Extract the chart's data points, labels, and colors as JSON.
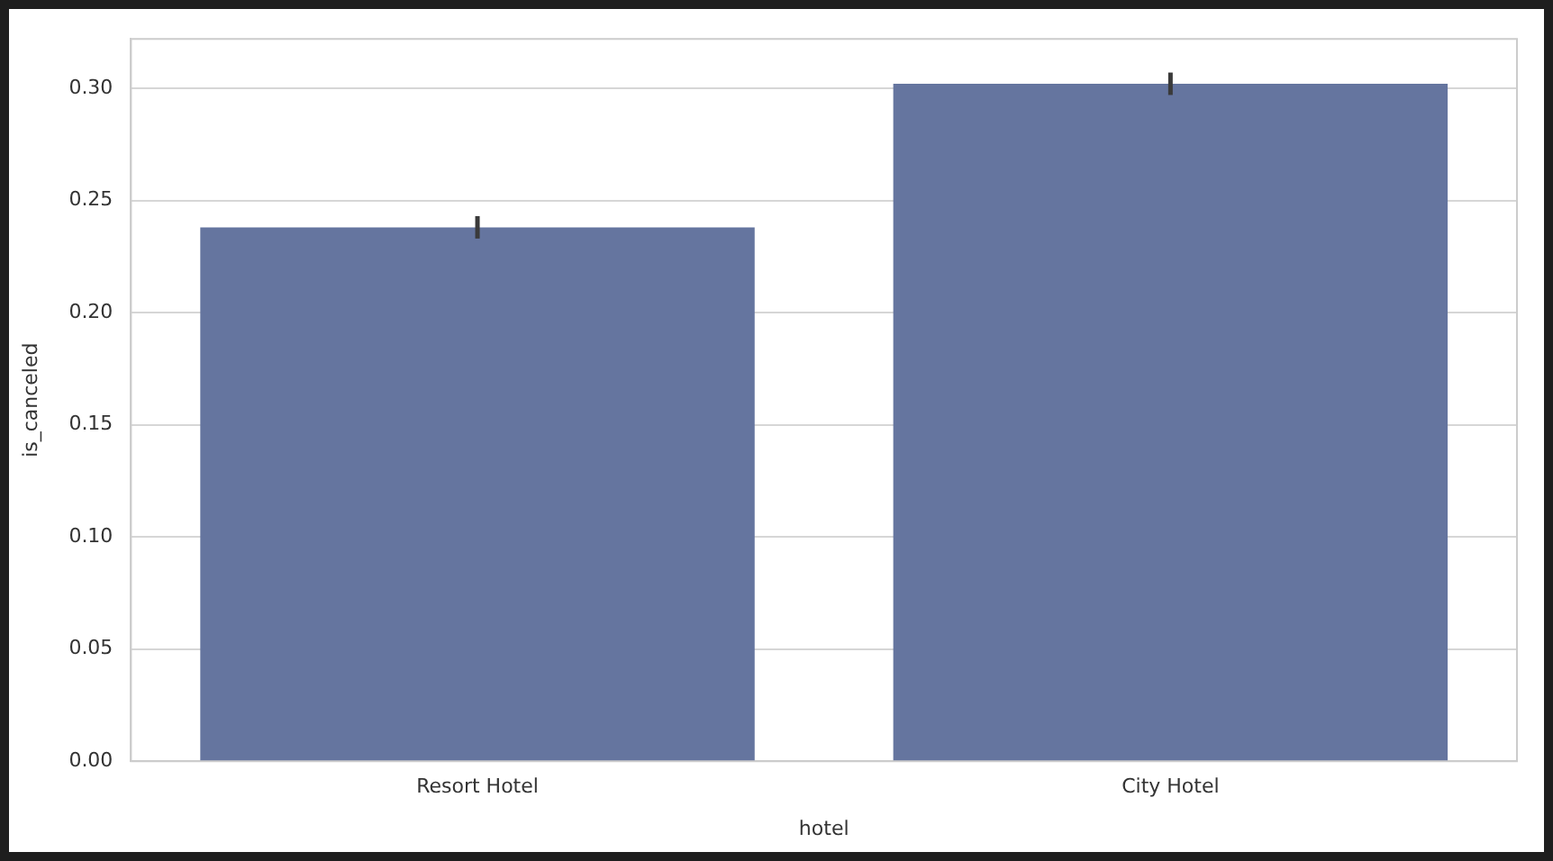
{
  "chart_data": {
    "type": "bar",
    "xlabel": "hotel",
    "ylabel": "is_canceled",
    "categories": [
      "Resort Hotel",
      "City Hotel"
    ],
    "values": [
      0.238,
      0.302
    ],
    "color": "#65759f",
    "errors": [
      [
        0.233,
        0.243
      ],
      [
        0.297,
        0.307
      ]
    ],
    "ylim": [
      0,
      0.322
    ],
    "yticks": [
      {
        "value": 0,
        "label": "0.00"
      },
      {
        "value": 0.05,
        "label": "0.05"
      },
      {
        "value": 0.1,
        "label": "0.10"
      },
      {
        "value": 0.15,
        "label": "0.15"
      },
      {
        "value": 0.2,
        "label": "0.20"
      },
      {
        "value": 0.25,
        "label": "0.25"
      },
      {
        "value": 0.3,
        "label": "0.30"
      }
    ],
    "grid": "y",
    "legend": false
  }
}
